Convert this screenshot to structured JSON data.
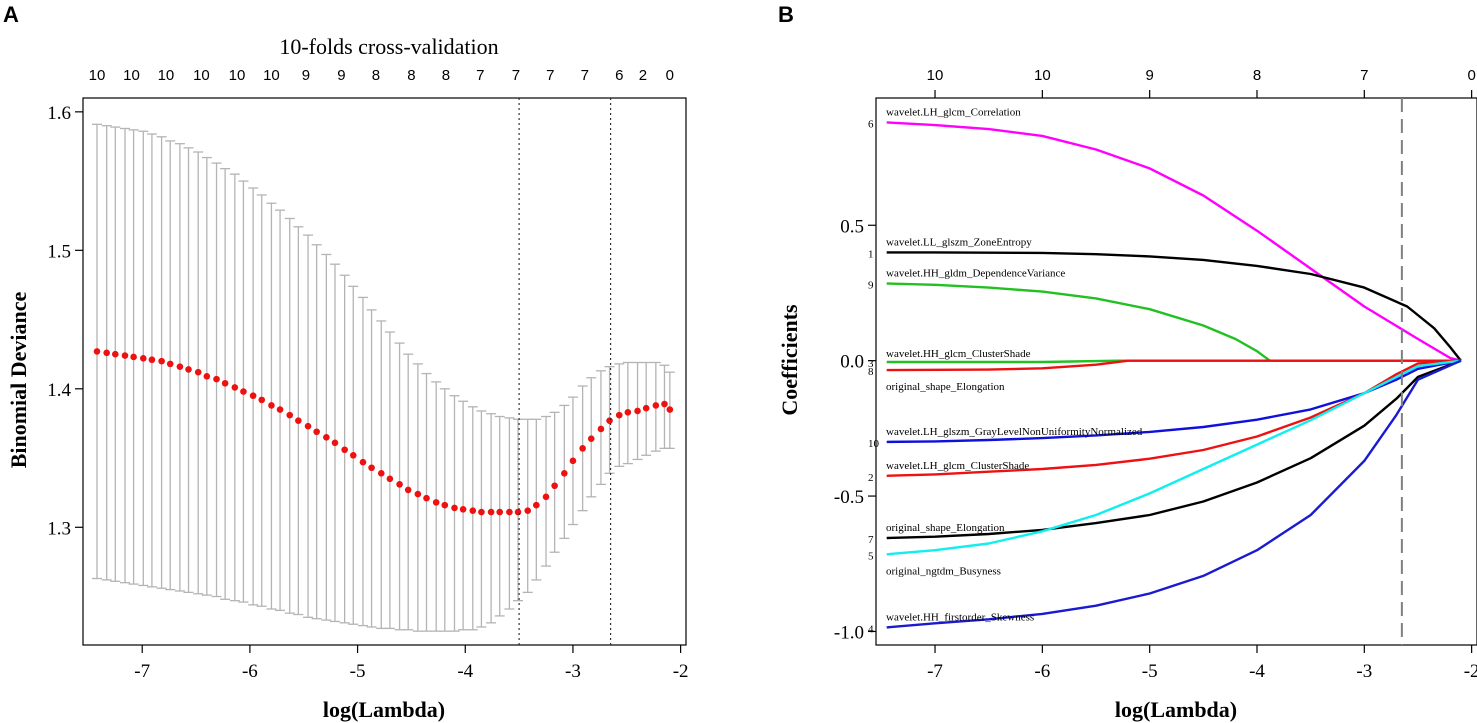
{
  "chart_data": [
    {
      "panel": "A",
      "type": "scatter",
      "title": "10-folds cross-validation",
      "xlabel": "log(Lambda)",
      "ylabel": "Binomial Deviance",
      "xlim": [
        -7.55,
        -1.95
      ],
      "ylim": [
        1.215,
        1.61
      ],
      "xticks": [
        -7,
        -6,
        -5,
        -4,
        -3,
        -2
      ],
      "yticks": [
        1.3,
        1.4,
        1.5,
        1.6
      ],
      "top_axis_labels": [
        "10",
        "10",
        "10",
        "10",
        "10",
        "10",
        "9",
        "9",
        "8",
        "8",
        "8",
        "7",
        "7",
        "7",
        "7",
        "6",
        "2",
        "0"
      ],
      "top_axis_x": [
        -7.42,
        -7.1,
        -6.78,
        -6.45,
        -6.12,
        -5.8,
        -5.48,
        -5.15,
        -4.83,
        -4.5,
        -4.18,
        -3.86,
        -3.53,
        -3.21,
        -2.89,
        -2.57,
        -2.35,
        -2.1
      ],
      "vlines": [
        -3.5,
        -2.65
      ],
      "points": {
        "x": [
          -7.42,
          -7.33,
          -7.25,
          -7.16,
          -7.08,
          -6.99,
          -6.91,
          -6.82,
          -6.74,
          -6.65,
          -6.57,
          -6.48,
          -6.4,
          -6.31,
          -6.23,
          -6.14,
          -6.06,
          -5.97,
          -5.89,
          -5.8,
          -5.72,
          -5.63,
          -5.55,
          -5.46,
          -5.38,
          -5.29,
          -5.21,
          -5.12,
          -5.04,
          -4.95,
          -4.87,
          -4.78,
          -4.7,
          -4.61,
          -4.53,
          -4.44,
          -4.36,
          -4.27,
          -4.19,
          -4.1,
          -4.02,
          -3.93,
          -3.85,
          -3.76,
          -3.68,
          -3.59,
          -3.51,
          -3.42,
          -3.34,
          -3.25,
          -3.17,
          -3.08,
          -3.0,
          -2.91,
          -2.83,
          -2.74,
          -2.66,
          -2.57,
          -2.49,
          -2.4,
          -2.32,
          -2.23,
          -2.15,
          -2.1
        ],
        "y": [
          1.427,
          1.426,
          1.425,
          1.424,
          1.423,
          1.422,
          1.421,
          1.42,
          1.418,
          1.416,
          1.414,
          1.412,
          1.409,
          1.407,
          1.404,
          1.401,
          1.398,
          1.395,
          1.392,
          1.388,
          1.385,
          1.381,
          1.377,
          1.373,
          1.369,
          1.365,
          1.361,
          1.356,
          1.352,
          1.347,
          1.343,
          1.339,
          1.335,
          1.331,
          1.327,
          1.324,
          1.321,
          1.318,
          1.316,
          1.314,
          1.313,
          1.312,
          1.311,
          1.311,
          1.311,
          1.311,
          1.311,
          1.312,
          1.316,
          1.322,
          1.33,
          1.339,
          1.348,
          1.357,
          1.364,
          1.371,
          1.377,
          1.381,
          1.383,
          1.384,
          1.386,
          1.388,
          1.389,
          1.385
        ],
        "lower": [
          1.263,
          1.262,
          1.261,
          1.26,
          1.259,
          1.258,
          1.257,
          1.256,
          1.255,
          1.254,
          1.253,
          1.252,
          1.251,
          1.25,
          1.248,
          1.247,
          1.246,
          1.244,
          1.243,
          1.241,
          1.24,
          1.238,
          1.237,
          1.235,
          1.234,
          1.233,
          1.232,
          1.231,
          1.23,
          1.229,
          1.228,
          1.227,
          1.227,
          1.226,
          1.226,
          1.225,
          1.225,
          1.225,
          1.225,
          1.225,
          1.226,
          1.226,
          1.228,
          1.231,
          1.236,
          1.241,
          1.247,
          1.253,
          1.262,
          1.272,
          1.282,
          1.292,
          1.302,
          1.312,
          1.322,
          1.331,
          1.339,
          1.344,
          1.346,
          1.349,
          1.352,
          1.355,
          1.357,
          1.357
        ],
        "upper": [
          1.591,
          1.59,
          1.589,
          1.588,
          1.587,
          1.586,
          1.584,
          1.582,
          1.579,
          1.577,
          1.574,
          1.571,
          1.567,
          1.563,
          1.559,
          1.555,
          1.55,
          1.545,
          1.54,
          1.534,
          1.529,
          1.523,
          1.517,
          1.511,
          1.504,
          1.497,
          1.49,
          1.482,
          1.474,
          1.466,
          1.457,
          1.449,
          1.441,
          1.433,
          1.425,
          1.418,
          1.411,
          1.405,
          1.4,
          1.395,
          1.391,
          1.387,
          1.384,
          1.382,
          1.38,
          1.379,
          1.378,
          1.378,
          1.378,
          1.38,
          1.383,
          1.388,
          1.394,
          1.402,
          1.408,
          1.413,
          1.416,
          1.418,
          1.419,
          1.419,
          1.419,
          1.419,
          1.417,
          1.412
        ]
      },
      "colors": {
        "points": "#ee1111",
        "errorbars": "#b4b4b4",
        "vline": "#222222"
      }
    },
    {
      "panel": "B",
      "type": "line",
      "title": "",
      "xlabel": "log(Lambda)",
      "ylabel": "Coefficients",
      "xlim": [
        -7.55,
        -1.95
      ],
      "ylim": [
        -1.05,
        0.97
      ],
      "xticks": [
        -7,
        -6,
        -5,
        -4,
        -3,
        -2
      ],
      "yticks": [
        -1.0,
        -0.5,
        0.0,
        0.5
      ],
      "ytick_labels": [
        "-1.0",
        "-0.5",
        "0.0",
        "0.5"
      ],
      "top_axis_labels": [
        "10",
        "10",
        "9",
        "8",
        "7",
        "0"
      ],
      "top_axis_x": [
        -7,
        -6,
        -5,
        -4,
        -3,
        -2
      ],
      "vlines": [
        -2.65
      ],
      "series": [
        {
          "name": "wavelet.LH_glcm_Correlation",
          "index": "6",
          "color": "#ff00ff",
          "x": [
            -7.45,
            -7,
            -6.5,
            -6,
            -5.5,
            -5,
            -4.5,
            -4,
            -3.5,
            -3,
            -2.5,
            -2.2,
            -2.1
          ],
          "values": [
            0.88,
            0.87,
            0.855,
            0.83,
            0.78,
            0.71,
            0.61,
            0.48,
            0.34,
            0.2,
            0.08,
            0.01,
            0
          ]
        },
        {
          "name": "wavelet.LL_glszm_ZoneEntropy",
          "index": "1",
          "color": "#000000",
          "x": [
            -7.45,
            -7,
            -6,
            -5.5,
            -5,
            -4.5,
            -4,
            -3.5,
            -3,
            -2.6,
            -2.35,
            -2.2,
            -2.1
          ],
          "values": [
            0.4,
            0.4,
            0.398,
            0.393,
            0.385,
            0.372,
            0.35,
            0.32,
            0.27,
            0.2,
            0.12,
            0.05,
            0
          ]
        },
        {
          "name": "wavelet.HH_gldm_DependenceVariance",
          "index": "9",
          "color": "#22c022",
          "x": [
            -7.45,
            -7,
            -6.5,
            -6,
            -5.5,
            -5,
            -4.5,
            -4.2,
            -4,
            -3.88,
            -2.1
          ],
          "values": [
            0.285,
            0.28,
            0.27,
            0.255,
            0.23,
            0.19,
            0.13,
            0.08,
            0.035,
            0,
            0
          ]
        },
        {
          "name": "wavelet.HH_glcm_ClusterShade",
          "index": "3",
          "color": "#22c022",
          "x": [
            -7.45,
            -6,
            -5.3,
            -2.1
          ],
          "values": [
            -0.005,
            -0.005,
            0,
            0
          ]
        },
        {
          "name": "original_shape_Elongation",
          "index": "8",
          "color": "#ee1111",
          "x": [
            -7.45,
            -6.5,
            -6,
            -5.5,
            -5.2,
            -2.1
          ],
          "values": [
            -0.035,
            -0.033,
            -0.028,
            -0.015,
            0,
            0
          ]
        },
        {
          "name": "wavelet.LH_glszm_GrayLevelNonUniformityNormalized",
          "index": "10",
          "color": "#1010dd",
          "x": [
            -7.45,
            -7,
            -6.5,
            -6,
            -5.5,
            -5,
            -4.5,
            -4,
            -3.5,
            -3,
            -2.7,
            -2.5,
            -2.1
          ],
          "values": [
            -0.3,
            -0.298,
            -0.293,
            -0.286,
            -0.276,
            -0.263,
            -0.245,
            -0.218,
            -0.18,
            -0.12,
            -0.07,
            -0.03,
            0
          ]
        },
        {
          "name": "wavelet.LH_glcm_ClusterShade",
          "index": "2",
          "color": "#ee1111",
          "x": [
            -7.45,
            -7,
            -6.5,
            -6,
            -5.5,
            -5,
            -4.5,
            -4,
            -3.5,
            -3,
            -2.7,
            -2.5,
            -2.1
          ],
          "values": [
            -0.425,
            -0.42,
            -0.41,
            -0.4,
            -0.385,
            -0.362,
            -0.33,
            -0.28,
            -0.21,
            -0.12,
            -0.05,
            -0.01,
            0
          ]
        },
        {
          "name": "original_shape_Elongation",
          "index": "7",
          "color": "#000000",
          "x": [
            -7.45,
            -7,
            -6.5,
            -6,
            -5.5,
            -5,
            -4.5,
            -4,
            -3.5,
            -3,
            -2.7,
            -2.5,
            -2.1
          ],
          "values": [
            -0.655,
            -0.65,
            -0.64,
            -0.625,
            -0.6,
            -0.57,
            -0.52,
            -0.45,
            -0.36,
            -0.24,
            -0.14,
            -0.06,
            0
          ]
        },
        {
          "name": "original_ngtdm_Busyness",
          "index": "5",
          "color": "#11eeee",
          "x": [
            -7.45,
            -7,
            -6.5,
            -6,
            -5.5,
            -5,
            -4.5,
            -4,
            -3.5,
            -3,
            -2.7,
            -2.5,
            -2.1
          ],
          "values": [
            -0.715,
            -0.7,
            -0.675,
            -0.63,
            -0.57,
            -0.49,
            -0.4,
            -0.31,
            -0.22,
            -0.12,
            -0.06,
            -0.02,
            0
          ]
        },
        {
          "name": "wavelet.HH_firstorder_Skewness",
          "index": "4",
          "color": "#1a1ad0",
          "x": [
            -7.45,
            -7,
            -6.5,
            -6,
            -5.5,
            -5,
            -4.5,
            -4,
            -3.5,
            -3,
            -2.7,
            -2.5,
            -2.1
          ],
          "values": [
            -0.985,
            -0.97,
            -0.955,
            -0.935,
            -0.905,
            -0.86,
            -0.795,
            -0.7,
            -0.57,
            -0.37,
            -0.2,
            -0.07,
            0
          ]
        }
      ],
      "colors": {
        "vline": "#808080"
      }
    }
  ],
  "panels": {
    "a_label": "A",
    "b_label": "B"
  }
}
